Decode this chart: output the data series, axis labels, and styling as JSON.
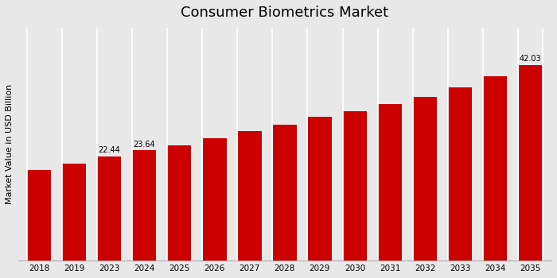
{
  "title": "Consumer Biometrics Market",
  "ylabel": "Market Value in USD Billion",
  "categories": [
    "2018",
    "2019",
    "2023",
    "2024",
    "2025",
    "2026",
    "2027",
    "2028",
    "2029",
    "2030",
    "2031",
    "2032",
    "2033",
    "2034",
    "2035"
  ],
  "values": [
    19.5,
    20.8,
    22.44,
    23.64,
    24.8,
    26.2,
    27.8,
    29.2,
    30.8,
    32.1,
    33.6,
    35.2,
    37.2,
    39.5,
    42.03
  ],
  "bar_color": "#cc0000",
  "background_color": "#e8e8e8",
  "labeled_bars": {
    "2023": "22.44",
    "2024": "23.64",
    "2035": "42.03"
  },
  "ylim": [
    0,
    50
  ],
  "title_fontsize": 13,
  "label_fontsize": 7,
  "tick_fontsize": 7.5,
  "ylabel_fontsize": 8,
  "bar_width": 0.68,
  "bottom_strip_color": "#cc0000"
}
